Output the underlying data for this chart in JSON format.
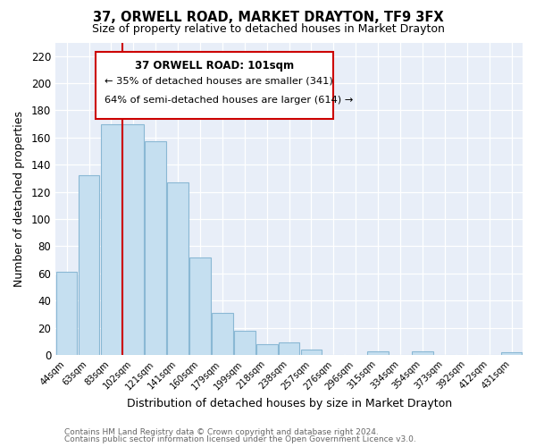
{
  "title": "37, ORWELL ROAD, MARKET DRAYTON, TF9 3FX",
  "subtitle": "Size of property relative to detached houses in Market Drayton",
  "xlabel": "Distribution of detached houses by size in Market Drayton",
  "ylabel": "Number of detached properties",
  "footer_line1": "Contains HM Land Registry data © Crown copyright and database right 2024.",
  "footer_line2": "Contains public sector information licensed under the Open Government Licence v3.0.",
  "bin_labels": [
    "44sqm",
    "63sqm",
    "83sqm",
    "102sqm",
    "121sqm",
    "141sqm",
    "160sqm",
    "179sqm",
    "199sqm",
    "218sqm",
    "238sqm",
    "257sqm",
    "276sqm",
    "296sqm",
    "315sqm",
    "334sqm",
    "354sqm",
    "373sqm",
    "392sqm",
    "412sqm",
    "431sqm"
  ],
  "bar_heights": [
    61,
    132,
    170,
    170,
    157,
    127,
    72,
    31,
    18,
    8,
    9,
    4,
    0,
    0,
    3,
    0,
    3,
    0,
    0,
    0,
    2
  ],
  "bar_color": "#c5dff0",
  "bar_edge_color": "#8ab8d4",
  "vline_color": "#cc0000",
  "vline_index": 3,
  "ylim": [
    0,
    230
  ],
  "yticks": [
    0,
    20,
    40,
    60,
    80,
    100,
    120,
    140,
    160,
    180,
    200,
    220
  ],
  "annotation_title": "37 ORWELL ROAD: 101sqm",
  "annotation_line1": "← 35% of detached houses are smaller (341)",
  "annotation_line2": "64% of semi-detached houses are larger (614) →",
  "bg_color": "#eef2fa",
  "plot_bg_color": "#e8eef8"
}
